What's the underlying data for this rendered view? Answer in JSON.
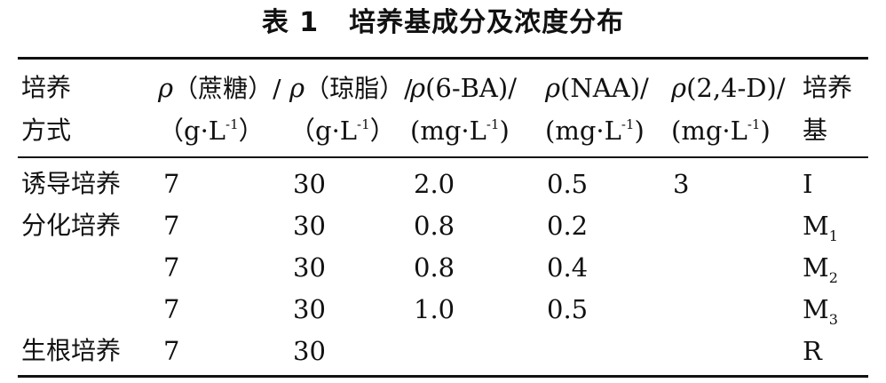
{
  "table": {
    "title_label": "表 1",
    "title_text": "培养基成分及浓度分布",
    "headers": [
      {
        "l1": "培养",
        "l2": "方式"
      },
      {
        "sym": "ρ",
        "l1": "（蔗糖）/",
        "l2a": "（g·L",
        "sup": "-1",
        "l2b": "）"
      },
      {
        "sym": "ρ",
        "l1": "（琼脂）/",
        "l2a": "（g·L",
        "sup": "-1",
        "l2b": "）"
      },
      {
        "sym": "ρ",
        "l1": "(6-BA)/",
        "l2a": "(mg·L",
        "sup": "-1",
        "l2b": ")"
      },
      {
        "sym": "ρ",
        "l1": "(NAA)/",
        "l2a": "(mg·L",
        "sup": "-1",
        "l2b": ")"
      },
      {
        "sym": "ρ",
        "l1": "(2,4-D)/",
        "l2a": "(mg·L",
        "sup": "-1",
        "l2b": ")"
      },
      {
        "l1": "培养",
        "l2": "基"
      }
    ],
    "rows": [
      {
        "method": "诱导培养",
        "sucrose": "7",
        "agar": "30",
        "ba": "2.0",
        "naa": "0.5",
        "d24": "3",
        "medium": "I",
        "medium_sub": ""
      },
      {
        "method": "分化培养",
        "sucrose": "7",
        "agar": "30",
        "ba": "0.8",
        "naa": "0.2",
        "d24": "",
        "medium": "M",
        "medium_sub": "1"
      },
      {
        "method": "",
        "sucrose": "7",
        "agar": "30",
        "ba": "0.8",
        "naa": "0.4",
        "d24": "",
        "medium": "M",
        "medium_sub": "2"
      },
      {
        "method": "",
        "sucrose": "7",
        "agar": "30",
        "ba": "1.0",
        "naa": "0.5",
        "d24": "",
        "medium": "M",
        "medium_sub": "3"
      },
      {
        "method": "生根培养",
        "sucrose": "7",
        "agar": "30",
        "ba": "",
        "naa": "",
        "d24": "",
        "medium": "R",
        "medium_sub": ""
      }
    ]
  }
}
